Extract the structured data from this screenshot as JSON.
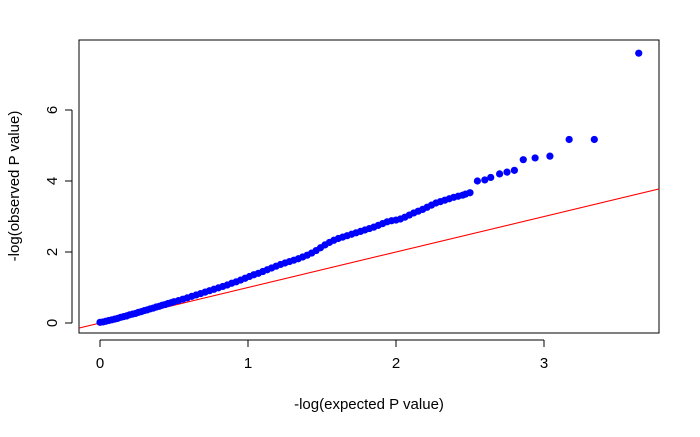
{
  "chart_data": {
    "type": "scatter",
    "title": "",
    "xlabel": "-log(expected P value)",
    "ylabel": "-log(observed P value)",
    "xlim": [
      0,
      3.8
    ],
    "ylim": [
      0,
      7.6
    ],
    "x_ticks": [
      0,
      1,
      2,
      3
    ],
    "x_tick_labels": [
      "0",
      "1",
      "2",
      "3"
    ],
    "y_ticks": [
      0,
      2,
      4,
      6
    ],
    "y_tick_labels": [
      "0",
      "2",
      "4",
      "6"
    ],
    "grid": false,
    "legend": "none",
    "series": [
      {
        "color": "#0000ff",
        "marker": "filled-circle",
        "points": [
          [
            0.0,
            0.02
          ],
          [
            0.02,
            0.03
          ],
          [
            0.04,
            0.05
          ],
          [
            0.06,
            0.07
          ],
          [
            0.08,
            0.09
          ],
          [
            0.1,
            0.11
          ],
          [
            0.12,
            0.13
          ],
          [
            0.14,
            0.16
          ],
          [
            0.16,
            0.18
          ],
          [
            0.18,
            0.2
          ],
          [
            0.2,
            0.23
          ],
          [
            0.22,
            0.25
          ],
          [
            0.24,
            0.27
          ],
          [
            0.26,
            0.3
          ],
          [
            0.28,
            0.32
          ],
          [
            0.3,
            0.35
          ],
          [
            0.32,
            0.37
          ],
          [
            0.34,
            0.4
          ],
          [
            0.36,
            0.42
          ],
          [
            0.38,
            0.45
          ],
          [
            0.4,
            0.47
          ],
          [
            0.42,
            0.5
          ],
          [
            0.44,
            0.52
          ],
          [
            0.46,
            0.55
          ],
          [
            0.48,
            0.57
          ],
          [
            0.5,
            0.6
          ],
          [
            0.53,
            0.63
          ],
          [
            0.56,
            0.67
          ],
          [
            0.59,
            0.71
          ],
          [
            0.62,
            0.75
          ],
          [
            0.65,
            0.79
          ],
          [
            0.68,
            0.83
          ],
          [
            0.71,
            0.87
          ],
          [
            0.74,
            0.91
          ],
          [
            0.77,
            0.95
          ],
          [
            0.8,
            0.99
          ],
          [
            0.83,
            1.03
          ],
          [
            0.86,
            1.07
          ],
          [
            0.89,
            1.12
          ],
          [
            0.92,
            1.16
          ],
          [
            0.95,
            1.21
          ],
          [
            0.98,
            1.26
          ],
          [
            1.01,
            1.31
          ],
          [
            1.04,
            1.36
          ],
          [
            1.07,
            1.4
          ],
          [
            1.1,
            1.45
          ],
          [
            1.13,
            1.5
          ],
          [
            1.16,
            1.55
          ],
          [
            1.19,
            1.6
          ],
          [
            1.22,
            1.65
          ],
          [
            1.25,
            1.69
          ],
          [
            1.28,
            1.73
          ],
          [
            1.31,
            1.77
          ],
          [
            1.34,
            1.81
          ],
          [
            1.37,
            1.86
          ],
          [
            1.4,
            1.91
          ],
          [
            1.43,
            1.97
          ],
          [
            1.46,
            2.04
          ],
          [
            1.49,
            2.12
          ],
          [
            1.52,
            2.2
          ],
          [
            1.55,
            2.27
          ],
          [
            1.58,
            2.33
          ],
          [
            1.61,
            2.38
          ],
          [
            1.64,
            2.42
          ],
          [
            1.67,
            2.46
          ],
          [
            1.7,
            2.5
          ],
          [
            1.73,
            2.54
          ],
          [
            1.76,
            2.58
          ],
          [
            1.79,
            2.62
          ],
          [
            1.82,
            2.66
          ],
          [
            1.85,
            2.7
          ],
          [
            1.88,
            2.75
          ],
          [
            1.91,
            2.8
          ],
          [
            1.94,
            2.85
          ],
          [
            1.97,
            2.88
          ],
          [
            2.0,
            2.9
          ],
          [
            2.03,
            2.93
          ],
          [
            2.06,
            2.98
          ],
          [
            2.09,
            3.04
          ],
          [
            2.12,
            3.1
          ],
          [
            2.15,
            3.15
          ],
          [
            2.18,
            3.2
          ],
          [
            2.21,
            3.26
          ],
          [
            2.24,
            3.32
          ],
          [
            2.27,
            3.38
          ],
          [
            2.3,
            3.42
          ],
          [
            2.33,
            3.46
          ],
          [
            2.36,
            3.5
          ],
          [
            2.39,
            3.54
          ],
          [
            2.42,
            3.57
          ],
          [
            2.45,
            3.6
          ],
          [
            2.47,
            3.63
          ],
          [
            2.5,
            3.67
          ],
          [
            2.55,
            4.0
          ],
          [
            2.6,
            4.03
          ],
          [
            2.64,
            4.1
          ],
          [
            2.7,
            4.2
          ],
          [
            2.75,
            4.25
          ],
          [
            2.8,
            4.3
          ],
          [
            2.86,
            4.6
          ],
          [
            2.94,
            4.65
          ],
          [
            3.04,
            4.7
          ],
          [
            3.17,
            5.17
          ],
          [
            3.34,
            5.17
          ],
          [
            3.64,
            7.6
          ]
        ]
      }
    ],
    "reference_line": {
      "color": "#ff0000",
      "intercept": 0,
      "slope": 1
    }
  }
}
